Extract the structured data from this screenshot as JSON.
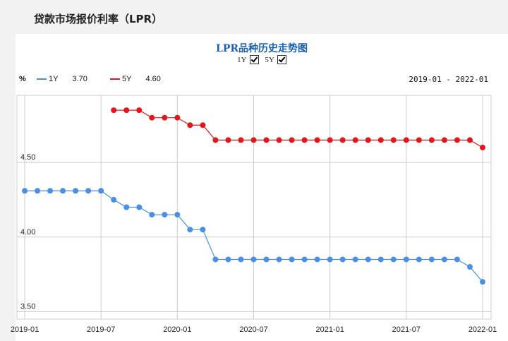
{
  "page_title": "贷款市场报价利率（LPR）",
  "chart_title": "LPR品种历史走势图",
  "toggles": [
    {
      "label": "1Y",
      "checked": true
    },
    {
      "label": "5Y",
      "checked": true
    }
  ],
  "unit": "%",
  "date_range": "2019-01 - 2022-01",
  "colors": {
    "series_1y": "#4a90e2",
    "series_5y": "#e3161d",
    "grid": "#cccccc",
    "title": "#1a5fb4"
  },
  "chart_data": {
    "type": "line",
    "title": "LPR品种历史走势图",
    "ylabel": "%",
    "ylim": [
      3.45,
      4.95
    ],
    "xlim": [
      "2019-01",
      "2022-01"
    ],
    "grid": true,
    "legend_placement": "top-left",
    "y_ticks": [
      "4.50",
      "4.00",
      "3.50"
    ],
    "y_tick_values": [
      4.5,
      4.0,
      3.5
    ],
    "x_ticks": [
      "2019-01",
      "2019-07",
      "2020-01",
      "2020-07",
      "2021-01",
      "2021-07",
      "2022-01"
    ],
    "x": [
      "2019-01",
      "2019-02",
      "2019-03",
      "2019-04",
      "2019-05",
      "2019-06",
      "2019-07",
      "2019-08",
      "2019-09",
      "2019-10",
      "2019-11",
      "2019-12",
      "2020-01",
      "2020-02",
      "2020-03",
      "2020-04",
      "2020-05",
      "2020-06",
      "2020-07",
      "2020-08",
      "2020-09",
      "2020-10",
      "2020-11",
      "2020-12",
      "2021-01",
      "2021-02",
      "2021-03",
      "2021-04",
      "2021-05",
      "2021-06",
      "2021-07",
      "2021-08",
      "2021-09",
      "2021-10",
      "2021-11",
      "2021-12",
      "2022-01"
    ],
    "series": [
      {
        "name": "1Y",
        "latest": "3.70",
        "values": [
          4.31,
          4.31,
          4.31,
          4.31,
          4.31,
          4.31,
          4.31,
          4.25,
          4.2,
          4.2,
          4.15,
          4.15,
          4.15,
          4.05,
          4.05,
          3.85,
          3.85,
          3.85,
          3.85,
          3.85,
          3.85,
          3.85,
          3.85,
          3.85,
          3.85,
          3.85,
          3.85,
          3.85,
          3.85,
          3.85,
          3.85,
          3.85,
          3.85,
          3.85,
          3.85,
          3.8,
          3.7
        ]
      },
      {
        "name": "5Y",
        "latest": "4.60",
        "values": [
          null,
          null,
          null,
          null,
          null,
          null,
          null,
          4.85,
          4.85,
          4.85,
          4.8,
          4.8,
          4.8,
          4.75,
          4.75,
          4.65,
          4.65,
          4.65,
          4.65,
          4.65,
          4.65,
          4.65,
          4.65,
          4.65,
          4.65,
          4.65,
          4.65,
          4.65,
          4.65,
          4.65,
          4.65,
          4.65,
          4.65,
          4.65,
          4.65,
          4.65,
          4.6
        ]
      }
    ]
  }
}
